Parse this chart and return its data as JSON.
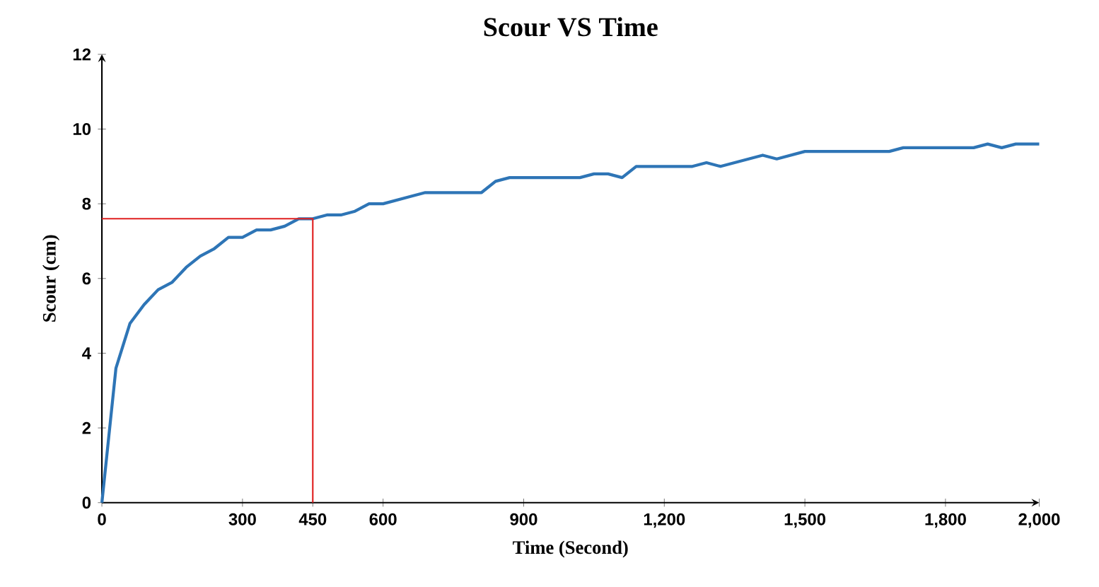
{
  "chart_data": {
    "type": "line",
    "title": "Scour VS Time",
    "xlabel": "Time (Second)",
    "ylabel": "Scour (cm)",
    "xlim": [
      0,
      2000
    ],
    "ylim": [
      0,
      12
    ],
    "xticks": [
      0,
      300,
      450,
      600,
      900,
      {
        "value": 1200,
        "label": "1,200"
      },
      {
        "value": 1500,
        "label": "1,500"
      },
      {
        "value": 1800,
        "label": "1,800"
      },
      {
        "value": 2000,
        "label": "2,000"
      }
    ],
    "yticks": [
      0,
      2,
      4,
      6,
      8,
      10,
      12
    ],
    "grid": false,
    "marker": "none",
    "line_style": "solid",
    "series": [
      {
        "color": "#2e75b6",
        "x": [
          0,
          30,
          60,
          90,
          120,
          150,
          180,
          210,
          240,
          270,
          300,
          330,
          360,
          390,
          420,
          450,
          480,
          510,
          540,
          570,
          600,
          630,
          660,
          690,
          720,
          810,
          840,
          870,
          1020,
          1050,
          1080,
          1110,
          1140,
          1260,
          1290,
          1320,
          1410,
          1440,
          1500,
          1680,
          1710,
          1860,
          1890,
          1920,
          1950,
          2000
        ],
        "values": [
          0,
          3.6,
          4.8,
          5.3,
          5.7,
          5.9,
          6.3,
          6.6,
          6.8,
          7.1,
          7.1,
          7.3,
          7.3,
          7.4,
          7.6,
          7.6,
          7.7,
          7.7,
          7.8,
          8.0,
          8.0,
          8.1,
          8.2,
          8.3,
          8.3,
          8.3,
          8.6,
          8.7,
          8.7,
          8.8,
          8.8,
          8.7,
          9.0,
          9.0,
          9.1,
          9.0,
          9.3,
          9.2,
          9.4,
          9.4,
          9.5,
          9.5,
          9.6,
          9.5,
          9.6,
          9.6
        ]
      },
      {
        "color": "#e02020",
        "x": [
          0,
          450,
          450
        ],
        "values": [
          7.6,
          7.6,
          0
        ]
      }
    ]
  }
}
